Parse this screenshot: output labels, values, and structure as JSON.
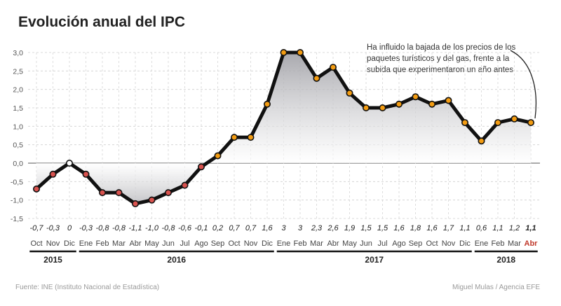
{
  "title": "Evolución anual del IPC",
  "annotation": "Ha influido la bajada de los precios de los paquetes turísticos y del gas, frente a la subida que experimentaron un año antes",
  "source": "Fuente: INE (Instituto Nacional de Estadística)",
  "credit": "Miguel Mulas / Agencia EFE",
  "chart_data": {
    "type": "line",
    "title": "Evolución anual del IPC",
    "xlabel": "",
    "ylabel": "",
    "ylim": [
      -1.5,
      3.0
    ],
    "yticks": [
      "3,0",
      "2,5",
      "2,0",
      "1,5",
      "1,0",
      "0,5",
      "0,0",
      "-0,5",
      "-1,0",
      "-1,5"
    ],
    "ytick_values": [
      3.0,
      2.5,
      2.0,
      1.5,
      1.0,
      0.5,
      0.0,
      -0.5,
      -1.0,
      -1.5
    ],
    "grid": true,
    "categories": [
      "Oct",
      "Nov",
      "Dic",
      "Ene",
      "Feb",
      "Mar",
      "Abr",
      "May",
      "Jun",
      "Jul",
      "Ago",
      "Sep",
      "Oct",
      "Nov",
      "Dic",
      "Ene",
      "Feb",
      "Mar",
      "Abr",
      "May",
      "Jun",
      "Jul",
      "Ago",
      "Sep",
      "Oct",
      "Nov",
      "Dic",
      "Ene",
      "Feb",
      "Mar",
      "Abr"
    ],
    "values": [
      -0.7,
      -0.3,
      0.0,
      -0.3,
      -0.8,
      -0.8,
      -1.1,
      -1.0,
      -0.8,
      -0.6,
      -0.1,
      0.2,
      0.7,
      0.7,
      1.6,
      3.0,
      3.0,
      2.3,
      2.6,
      1.9,
      1.5,
      1.5,
      1.6,
      1.8,
      1.6,
      1.7,
      1.1,
      0.6,
      1.1,
      1.2,
      1.1
    ],
    "value_labels": [
      "-0,7",
      "-0,3",
      "0",
      "-0,3",
      "-0,8",
      "-0,8",
      "-1,1",
      "-1,0",
      "-0,8",
      "-0,6",
      "-0,1",
      "0,2",
      "0,7",
      "0,7",
      "1,6",
      "3",
      "3",
      "2,3",
      "2,6",
      "1,9",
      "1,5",
      "1,5",
      "1,6",
      "1,8",
      "1,6",
      "1,7",
      "1,1",
      "0,6",
      "1,1",
      "1,2",
      "1,1"
    ],
    "years": [
      {
        "label": "2015",
        "start": 0,
        "end": 2
      },
      {
        "label": "2016",
        "start": 3,
        "end": 14
      },
      {
        "label": "2017",
        "start": 15,
        "end": 26
      },
      {
        "label": "2018",
        "start": 27,
        "end": 30
      }
    ],
    "colors": {
      "line": "#111111",
      "marker_positive": "#f39c12",
      "marker_negative": "#d9534f",
      "marker_zero": "#ffffff",
      "highlight_label": "#c0392b",
      "area_top": "#8e8e93",
      "area_bottom": "#ffffff"
    }
  }
}
